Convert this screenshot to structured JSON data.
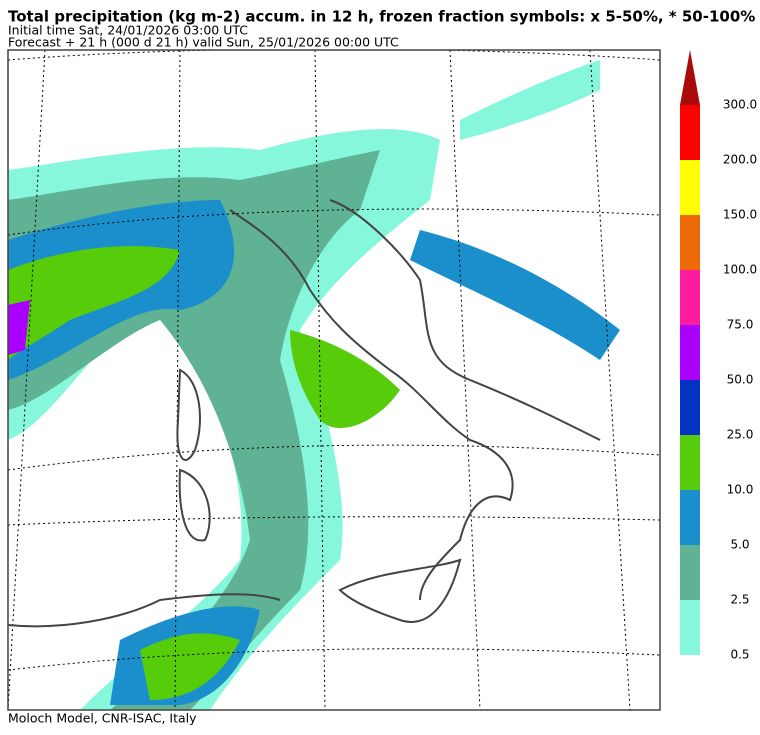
{
  "header": {
    "title": "Total precipitation (kg m-2) accum. in 12 h, frozen fraction symbols: x 5-50%, * 50-100%",
    "initial_time": "Initial time  Sat, 24/01/2026  03:00 UTC",
    "forecast": "Forecast  +  21 h  (000 d 21 h)  valid Sun, 25/01/2026 00:00 UTC"
  },
  "colorbar": {
    "levels": [
      {
        "value": 0.5,
        "label": "0.5"
      },
      {
        "value": 2.5,
        "label": "2.5"
      },
      {
        "value": 5,
        "label": "5.0"
      },
      {
        "value": 10,
        "label": "10.0"
      },
      {
        "value": 25,
        "label": "25.0"
      },
      {
        "value": 50,
        "label": "50.0"
      },
      {
        "value": 75,
        "label": "75.0"
      },
      {
        "value": 100,
        "label": "100.0"
      },
      {
        "value": 150,
        "label": "150.0"
      },
      {
        "value": 200,
        "label": "200.0"
      },
      {
        "value": 300,
        "label": "300.0"
      }
    ],
    "colors": [
      "#86f7da",
      "#60b294",
      "#1a8fcb",
      "#57cc0a",
      "#0433c4",
      "#aa00ff",
      "#ff1c9c",
      "#ee6a08",
      "#ffff00",
      "#ff0000",
      "#aa0a0a"
    ]
  },
  "footer": "Moloch Model, CNR-ISAC, Italy"
}
